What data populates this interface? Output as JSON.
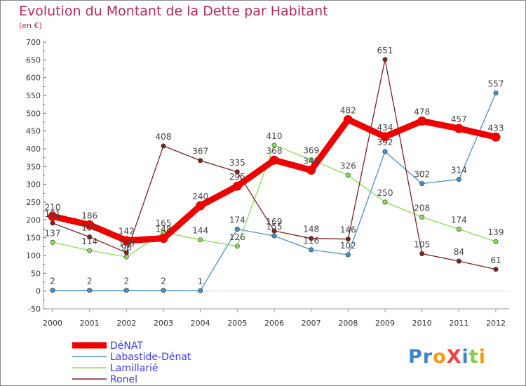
{
  "chart_data": {
    "type": "line",
    "title": "Evolution du Montant de la Dette par Habitant",
    "subtitle": "(en €)",
    "xlabel": "",
    "ylabel": "",
    "categories": [
      "2000",
      "2001",
      "2002",
      "2003",
      "2004",
      "2005",
      "2006",
      "2007",
      "2008",
      "2009",
      "2010",
      "2011",
      "2012"
    ],
    "ylim": [
      -50,
      700
    ],
    "yticks": [
      -50,
      0,
      50,
      100,
      150,
      200,
      250,
      300,
      350,
      400,
      450,
      500,
      550,
      600,
      650,
      700
    ],
    "grid": false,
    "legend_position": "bottom-left",
    "series": [
      {
        "name": "DéNAT",
        "color": "#ee0000",
        "values": [
          210,
          186,
          142,
          148,
          240,
          295,
          368,
          340,
          482,
          434,
          478,
          457,
          433
        ]
      },
      {
        "name": "Labastide-Dénat",
        "color": "#4a8fc8",
        "values": [
          2,
          2,
          2,
          2,
          1,
          174,
          155,
          116,
          102,
          392,
          302,
          314,
          557
        ]
      },
      {
        "name": "Lamillarié",
        "color": "#88dd55",
        "values": [
          137,
          114,
          96,
          165,
          144,
          126,
          410,
          369,
          326,
          250,
          208,
          174,
          139
        ]
      },
      {
        "name": "Ronel",
        "color": "#7a2222",
        "values": [
          191,
          152,
          108,
          408,
          367,
          335,
          169,
          148,
          146,
          651,
          105,
          84,
          61
        ]
      }
    ],
    "data_labels": [
      {
        "text": "210",
        "i": 0,
        "v": 210
      },
      {
        "text": "186",
        "i": 1,
        "v": 186
      },
      {
        "text": "142",
        "i": 2,
        "v": 142
      },
      {
        "text": "148",
        "i": 3,
        "v": 148
      },
      {
        "text": "240",
        "i": 4,
        "v": 240
      },
      {
        "text": "295",
        "i": 5,
        "v": 295
      },
      {
        "text": "368",
        "i": 6,
        "v": 368
      },
      {
        "text": "340",
        "i": 7,
        "v": 340
      },
      {
        "text": "482",
        "i": 8,
        "v": 482
      },
      {
        "text": "434",
        "i": 9,
        "v": 434
      },
      {
        "text": "478",
        "i": 10,
        "v": 478
      },
      {
        "text": "457",
        "i": 11,
        "v": 457
      },
      {
        "text": "433",
        "i": 12,
        "v": 433
      },
      {
        "text": "2",
        "i": 0,
        "v": 2
      },
      {
        "text": "2",
        "i": 1,
        "v": 2
      },
      {
        "text": "2",
        "i": 2,
        "v": 2
      },
      {
        "text": "2",
        "i": 3,
        "v": 2
      },
      {
        "text": "1",
        "i": 4,
        "v": 1
      },
      {
        "text": "174",
        "i": 5,
        "v": 174
      },
      {
        "text": "155",
        "i": 6,
        "v": 155
      },
      {
        "text": "116",
        "i": 7,
        "v": 116
      },
      {
        "text": "102",
        "i": 8,
        "v": 102
      },
      {
        "text": "392",
        "i": 9,
        "v": 392
      },
      {
        "text": "302",
        "i": 10,
        "v": 302
      },
      {
        "text": "314",
        "i": 11,
        "v": 314
      },
      {
        "text": "557",
        "i": 12,
        "v": 557
      },
      {
        "text": "137",
        "i": 0,
        "v": 137
      },
      {
        "text": "114",
        "i": 1,
        "v": 114
      },
      {
        "text": "96",
        "i": 2,
        "v": 96
      },
      {
        "text": "165",
        "i": 3,
        "v": 165
      },
      {
        "text": "144",
        "i": 4,
        "v": 144
      },
      {
        "text": "126",
        "i": 5,
        "v": 126
      },
      {
        "text": "410",
        "i": 6,
        "v": 410
      },
      {
        "text": "369",
        "i": 7,
        "v": 369
      },
      {
        "text": "326",
        "i": 8,
        "v": 326
      },
      {
        "text": "250",
        "i": 9,
        "v": 250
      },
      {
        "text": "208",
        "i": 10,
        "v": 208
      },
      {
        "text": "174",
        "i": 11,
        "v": 174
      },
      {
        "text": "139",
        "i": 12,
        "v": 139
      },
      {
        "text": "191",
        "i": 0,
        "v": 191
      },
      {
        "text": "152",
        "i": 1,
        "v": 152
      },
      {
        "text": "108",
        "i": 2,
        "v": 108
      },
      {
        "text": "408",
        "i": 3,
        "v": 408
      },
      {
        "text": "367",
        "i": 4,
        "v": 367
      },
      {
        "text": "335",
        "i": 5,
        "v": 335
      },
      {
        "text": "169",
        "i": 6,
        "v": 169
      },
      {
        "text": "148",
        "i": 7,
        "v": 148
      },
      {
        "text": "146",
        "i": 8,
        "v": 146
      },
      {
        "text": "651",
        "i": 9,
        "v": 651
      },
      {
        "text": "105",
        "i": 10,
        "v": 105
      },
      {
        "text": "84",
        "i": 11,
        "v": 84
      },
      {
        "text": "61",
        "i": 12,
        "v": 61
      }
    ]
  },
  "logo": {
    "text": "ProXiti",
    "letters": [
      {
        "char": "P",
        "color": "#3f86c8"
      },
      {
        "char": "r",
        "color": "#3f86c8"
      },
      {
        "char": "o",
        "color": "#f39c12"
      },
      {
        "char": "X",
        "color": "#ee4444"
      },
      {
        "char": "i",
        "color": "#3f86c8"
      },
      {
        "char": "t",
        "color": "#88cc44"
      },
      {
        "char": "i",
        "color": "#f39c12"
      }
    ]
  }
}
